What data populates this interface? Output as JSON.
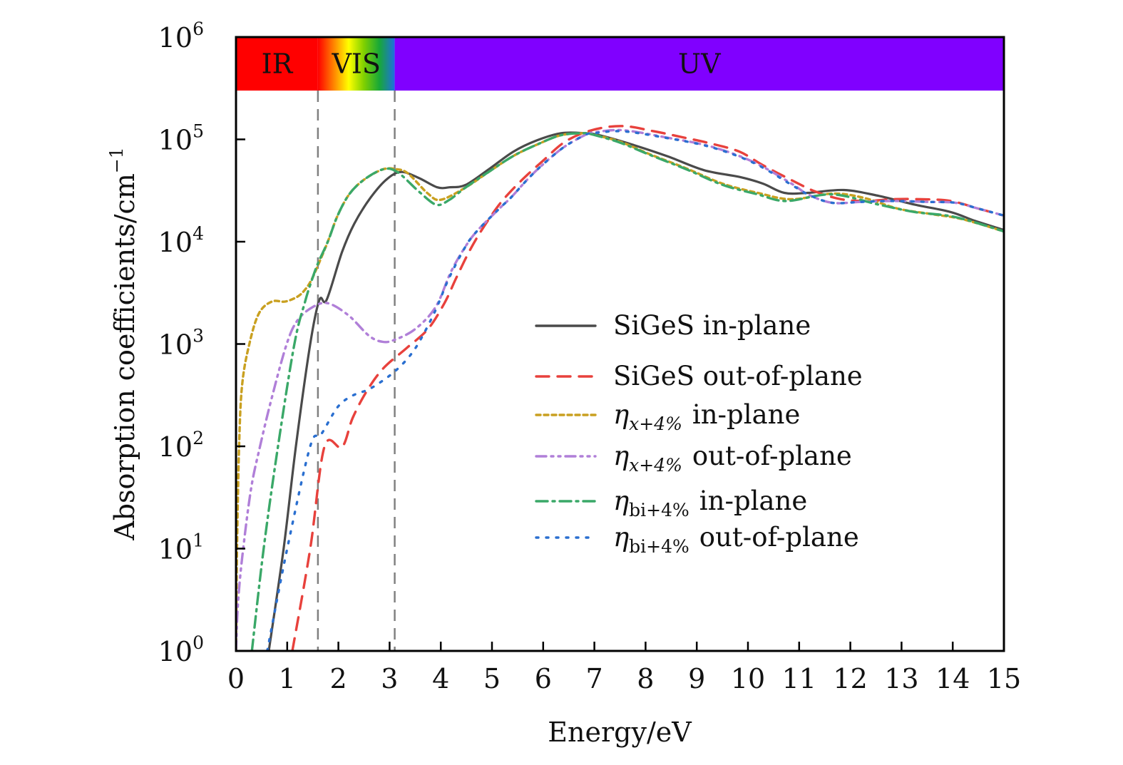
{
  "chart_data": {
    "type": "line",
    "title": "",
    "xlabel": "Energy/eV",
    "ylabel": "Absorption coefficients/cm",
    "ylabel_superscript": "−1",
    "xlim": [
      0,
      15
    ],
    "ylim": [
      1,
      1000000
    ],
    "yscale": "log",
    "grid": false,
    "x_ticks": [
      "0",
      "1",
      "2",
      "3",
      "4",
      "5",
      "6",
      "7",
      "8",
      "9",
      "10",
      "11",
      "12",
      "13",
      "14",
      "15"
    ],
    "y_ticks": [
      {
        "base": "10",
        "exp": "0",
        "value": 1
      },
      {
        "base": "10",
        "exp": "1",
        "value": 10
      },
      {
        "base": "10",
        "exp": "2",
        "value": 100
      },
      {
        "base": "10",
        "exp": "3",
        "value": 1000
      },
      {
        "base": "10",
        "exp": "4",
        "value": 10000
      },
      {
        "base": "10",
        "exp": "5",
        "value": 100000
      },
      {
        "base": "10",
        "exp": "6",
        "value": 1000000
      }
    ],
    "spectral_bands": [
      {
        "label": "IR",
        "from": 0,
        "to": 1.6,
        "color": "#ff0000"
      },
      {
        "label": "VIS",
        "from": 1.6,
        "to": 3.1,
        "color": "gradient",
        "gradient_stops": [
          "#ff0000",
          "#ff8000",
          "#ffff00",
          "#7fd000",
          "#18a838",
          "#1e6fe0"
        ]
      },
      {
        "label": "UV",
        "from": 3.1,
        "to": 15,
        "color": "#8000ff"
      }
    ],
    "band_bottom_value": 300000,
    "region_boundaries_eV": [
      1.6,
      3.1
    ],
    "legend_position": "center-right",
    "series": [
      {
        "name": "SiGeS in-plane",
        "label_main": "SiGeS in-plane",
        "color": "#4a4a4a",
        "style": "solid",
        "points": [
          [
            0.64,
            1
          ],
          [
            0.93,
            10
          ],
          [
            1.17,
            100
          ],
          [
            1.45,
            1000
          ],
          [
            1.63,
            2700
          ],
          [
            1.77,
            2700
          ],
          [
            2.07,
            7900
          ],
          [
            2.31,
            15000
          ],
          [
            2.63,
            27000
          ],
          [
            2.95,
            41000
          ],
          [
            3.23,
            48000
          ],
          [
            3.57,
            42000
          ],
          [
            3.93,
            34000
          ],
          [
            4.17,
            34000
          ],
          [
            4.49,
            36000
          ],
          [
            4.96,
            52000
          ],
          [
            5.42,
            76000
          ],
          [
            5.88,
            98000
          ],
          [
            6.35,
            115000
          ],
          [
            6.81,
            115000
          ],
          [
            7.09,
            110000
          ],
          [
            7.74,
            89000
          ],
          [
            8.44,
            68000
          ],
          [
            9.14,
            50000
          ],
          [
            9.83,
            43000
          ],
          [
            10.29,
            37000
          ],
          [
            10.71,
            30000
          ],
          [
            11.17,
            30000
          ],
          [
            11.87,
            32000
          ],
          [
            12.56,
            28000
          ],
          [
            13.26,
            23000
          ],
          [
            13.96,
            19500
          ],
          [
            14.43,
            16000
          ],
          [
            15.0,
            13000
          ]
        ]
      },
      {
        "name": "SiGeS out-of-plane",
        "label_main": "SiGeS out-of-plane",
        "color": "#e8413c",
        "style": "dashed",
        "points": [
          [
            1.1,
            1
          ],
          [
            1.45,
            10
          ],
          [
            1.73,
            100
          ],
          [
            2.07,
            98
          ],
          [
            2.28,
            190
          ],
          [
            2.56,
            350
          ],
          [
            2.88,
            580
          ],
          [
            3.33,
            910
          ],
          [
            3.75,
            1400
          ],
          [
            4.07,
            2500
          ],
          [
            4.3,
            4400
          ],
          [
            4.56,
            8100
          ],
          [
            4.82,
            13500
          ],
          [
            5.17,
            24000
          ],
          [
            5.56,
            39000
          ],
          [
            6.0,
            62000
          ],
          [
            6.43,
            95000
          ],
          [
            6.95,
            123000
          ],
          [
            7.55,
            135000
          ],
          [
            8.16,
            120000
          ],
          [
            8.72,
            105000
          ],
          [
            9.28,
            91000
          ],
          [
            9.83,
            76000
          ],
          [
            10.29,
            56000
          ],
          [
            10.85,
            40000
          ],
          [
            11.31,
            31000
          ],
          [
            11.82,
            26000
          ],
          [
            12.34,
            25000
          ],
          [
            12.8,
            26000
          ],
          [
            13.4,
            26000
          ],
          [
            13.96,
            25000
          ],
          [
            14.51,
            21000
          ],
          [
            15.0,
            18000
          ]
        ]
      },
      {
        "name": "η_{x+4%} in-plane",
        "label_symbol": "η",
        "label_sub": "x+4%",
        "label_rest": "in-plane",
        "color": "#c9a020",
        "style": "dotted",
        "points": [
          [
            0.0,
            1
          ],
          [
            0.02,
            10
          ],
          [
            0.06,
            100
          ],
          [
            0.12,
            400
          ],
          [
            0.26,
            1000
          ],
          [
            0.45,
            2000
          ],
          [
            0.7,
            2600
          ],
          [
            0.96,
            2600
          ],
          [
            1.2,
            2900
          ],
          [
            1.35,
            3400
          ],
          [
            1.47,
            4200
          ],
          [
            1.61,
            6000
          ],
          [
            1.8,
            10200
          ],
          [
            1.98,
            17800
          ],
          [
            2.21,
            29000
          ],
          [
            2.49,
            40000
          ],
          [
            2.87,
            51000
          ],
          [
            3.15,
            51000
          ],
          [
            3.37,
            46000
          ],
          [
            3.75,
            29500
          ],
          [
            4.0,
            25700
          ],
          [
            4.49,
            34000
          ],
          [
            4.96,
            49000
          ],
          [
            5.42,
            69000
          ],
          [
            5.88,
            89000
          ],
          [
            6.35,
            110000
          ],
          [
            6.81,
            115000
          ],
          [
            6.95,
            112000
          ],
          [
            7.5,
            95000
          ],
          [
            8.1,
            71000
          ],
          [
            8.8,
            52000
          ],
          [
            9.5,
            37000
          ],
          [
            10.19,
            30000
          ],
          [
            10.85,
            26000
          ],
          [
            11.64,
            29500
          ],
          [
            12.24,
            27000
          ],
          [
            12.94,
            21000
          ],
          [
            13.59,
            18600
          ],
          [
            14.19,
            16600
          ],
          [
            15.0,
            12600
          ]
        ]
      },
      {
        "name": "η_{x+4%} out-of-plane",
        "label_symbol": "η",
        "label_sub": "x+4%",
        "label_rest": "out-of-plane",
        "color": "#b07fd8",
        "style": "dash-dot-dot",
        "points": [
          [
            0.0,
            1
          ],
          [
            0.04,
            3
          ],
          [
            0.14,
            10
          ],
          [
            0.3,
            40
          ],
          [
            0.47,
            100
          ],
          [
            0.7,
            300
          ],
          [
            0.99,
            1000
          ],
          [
            1.2,
            1700
          ],
          [
            1.5,
            2300
          ],
          [
            1.8,
            2500
          ],
          [
            2.2,
            1900
          ],
          [
            2.6,
            1200
          ],
          [
            2.87,
            1050
          ],
          [
            3.1,
            1100
          ],
          [
            3.5,
            1400
          ],
          [
            3.9,
            2300
          ],
          [
            4.2,
            5100
          ],
          [
            4.49,
            9100
          ],
          [
            4.72,
            12900
          ],
          [
            5.14,
            21000
          ],
          [
            5.37,
            27000
          ],
          [
            5.7,
            41000
          ],
          [
            5.98,
            56000
          ],
          [
            6.39,
            83000
          ],
          [
            6.81,
            110000
          ],
          [
            7.0,
            117000
          ],
          [
            7.55,
            123000
          ],
          [
            8.38,
            105000
          ],
          [
            9.28,
            85000
          ],
          [
            10.11,
            60000
          ],
          [
            10.85,
            37000
          ],
          [
            11.17,
            29000
          ],
          [
            11.64,
            24000
          ],
          [
            12.2,
            24500
          ],
          [
            12.8,
            25000
          ],
          [
            13.5,
            24500
          ],
          [
            14.05,
            24000
          ],
          [
            14.51,
            21000
          ],
          [
            15.0,
            18000
          ]
        ]
      },
      {
        "name": "η_{bi+4%} in-plane",
        "label_symbol": "η",
        "label_sub": "bi+4%",
        "label_rest": "in-plane",
        "color": "#3aa868",
        "style": "dash-dot",
        "points": [
          [
            0.31,
            1
          ],
          [
            0.54,
            10
          ],
          [
            0.82,
            100
          ],
          [
            1.14,
            1000
          ],
          [
            1.35,
            2600
          ],
          [
            1.5,
            4500
          ],
          [
            1.61,
            6300
          ],
          [
            1.8,
            10200
          ],
          [
            1.98,
            17800
          ],
          [
            2.21,
            29000
          ],
          [
            2.49,
            40000
          ],
          [
            2.87,
            51000
          ],
          [
            3.15,
            48000
          ],
          [
            3.57,
            31000
          ],
          [
            3.91,
            23000
          ],
          [
            4.17,
            25700
          ],
          [
            4.49,
            34000
          ],
          [
            4.96,
            49000
          ],
          [
            5.42,
            69000
          ],
          [
            5.88,
            89000
          ],
          [
            6.35,
            110000
          ],
          [
            6.81,
            115000
          ],
          [
            6.95,
            112000
          ],
          [
            7.5,
            93000
          ],
          [
            8.1,
            70000
          ],
          [
            8.8,
            51000
          ],
          [
            9.5,
            36000
          ],
          [
            10.19,
            29000
          ],
          [
            10.75,
            25000
          ],
          [
            11.64,
            29000
          ],
          [
            12.56,
            23000
          ],
          [
            13.26,
            19500
          ],
          [
            14.05,
            17400
          ],
          [
            15.0,
            12600
          ]
        ]
      },
      {
        "name": "η_{bi+4%} out-of-plane",
        "label_symbol": "η",
        "label_sub": "bi+4%",
        "label_rest": "out-of-plane",
        "color": "#2a6fd0",
        "style": "dotted-sparse",
        "points": [
          [
            0.61,
            1
          ],
          [
            1.0,
            10
          ],
          [
            1.45,
            100
          ],
          [
            1.66,
            130
          ],
          [
            1.98,
            240
          ],
          [
            2.26,
            310
          ],
          [
            2.59,
            360
          ],
          [
            2.87,
            440
          ],
          [
            3.12,
            550
          ],
          [
            3.37,
            740
          ],
          [
            3.58,
            1050
          ],
          [
            3.89,
            2100
          ],
          [
            4.16,
            4400
          ],
          [
            4.49,
            9100
          ],
          [
            4.72,
            12900
          ],
          [
            5.14,
            21000
          ],
          [
            5.37,
            27000
          ],
          [
            5.7,
            41000
          ],
          [
            5.98,
            56000
          ],
          [
            6.39,
            83000
          ],
          [
            6.81,
            110000
          ],
          [
            7.0,
            115000
          ],
          [
            7.55,
            120000
          ],
          [
            8.38,
            104000
          ],
          [
            9.28,
            84000
          ],
          [
            10.11,
            59000
          ],
          [
            10.85,
            36000
          ],
          [
            11.17,
            29000
          ],
          [
            11.64,
            24000
          ],
          [
            12.2,
            24500
          ],
          [
            12.8,
            25000
          ],
          [
            13.5,
            24500
          ],
          [
            14.05,
            24000
          ],
          [
            14.51,
            21000
          ],
          [
            15.0,
            18000
          ]
        ]
      }
    ]
  }
}
